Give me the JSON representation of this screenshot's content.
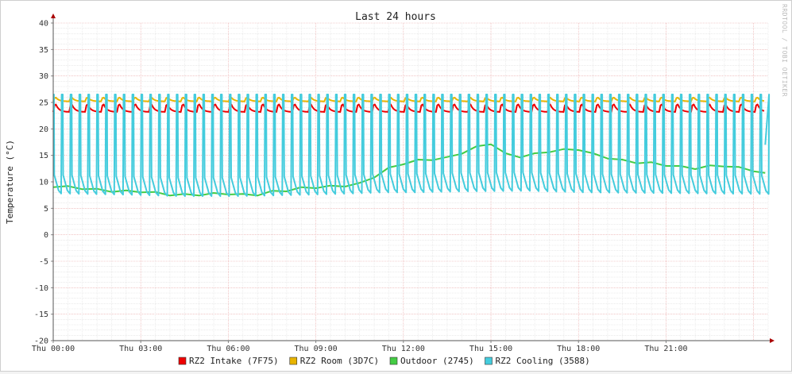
{
  "chart_data": {
    "type": "line",
    "title": "Last 24 hours",
    "ylabel": "Temperature (°C)",
    "watermark": "RRDTOOL / TOBI OETIKER",
    "ylim": [
      -20,
      40
    ],
    "yticks": [
      "40",
      "35",
      "30",
      "25",
      "20",
      "15",
      "10",
      "5",
      "0",
      "-5",
      "-10",
      "-15",
      "-20"
    ],
    "xlim_hours": [
      0,
      24.5
    ],
    "xticks": [
      {
        "label": "Thu 00:00",
        "hour": 0
      },
      {
        "label": "Thu 03:00",
        "hour": 3
      },
      {
        "label": "Thu 06:00",
        "hour": 6
      },
      {
        "label": "Thu 09:00",
        "hour": 9
      },
      {
        "label": "Thu 12:00",
        "hour": 12
      },
      {
        "label": "Thu 15:00",
        "hour": 15
      },
      {
        "label": "Thu 18:00",
        "hour": 18
      },
      {
        "label": "Thu 21:00",
        "hour": 21
      }
    ],
    "grid": true,
    "legend_position": "bottom",
    "series": [
      {
        "name": "RZ2 Intake (7F75)",
        "color": "#ee0000",
        "shape": "sawtooth",
        "cycles_per_hour": 1.83,
        "low": 23.2,
        "high": 25.0,
        "x": [
          0,
          24.4
        ],
        "y": [
          23.2,
          23.2
        ]
      },
      {
        "name": "RZ2 Room (3D7C)",
        "color": "#e8b400",
        "shape": "sawtooth",
        "cycles_per_hour": 1.83,
        "low": 25.2,
        "high": 26.1,
        "x": [
          0,
          24.4
        ],
        "y": [
          25.4,
          25.4
        ]
      },
      {
        "name": "Outdoor (2745)",
        "color": "#44cc44",
        "shape": "line",
        "x": [
          0,
          0.5,
          1,
          1.5,
          2,
          2.5,
          3,
          3.5,
          4,
          4.5,
          5,
          5.5,
          6,
          6.5,
          7,
          7.5,
          8,
          8.5,
          9,
          9.5,
          10,
          10.5,
          11,
          11.5,
          12,
          12.5,
          13,
          13.5,
          14,
          14.5,
          15,
          15.5,
          16,
          16.5,
          17,
          17.5,
          18,
          18.5,
          19,
          19.5,
          20,
          20.5,
          21,
          21.5,
          22,
          22.5,
          23,
          23.5,
          24,
          24.4
        ],
        "y": [
          9.2,
          9.0,
          8.8,
          8.5,
          8.3,
          8.2,
          8.2,
          7.9,
          7.6,
          7.5,
          7.6,
          7.7,
          7.8,
          7.5,
          7.6,
          8.1,
          8.4,
          8.8,
          9.0,
          9.1,
          9.3,
          9.6,
          11.0,
          12.5,
          13.5,
          14.0,
          14.3,
          14.5,
          15.5,
          16.5,
          17.3,
          15.2,
          14.8,
          15.2,
          15.8,
          16.0,
          16.2,
          15.2,
          14.6,
          14.0,
          13.7,
          13.5,
          13.2,
          12.8,
          12.6,
          12.9,
          13.1,
          12.6,
          12.2,
          11.5
        ]
      },
      {
        "name": "RZ2 Cooling (3588)",
        "color": "#44ccdd",
        "shape": "spikes",
        "spikes_per_hour": 3.3,
        "high": 26.5,
        "x": [
          0,
          2,
          4,
          6,
          8,
          10,
          11,
          12,
          14,
          16,
          18,
          20,
          22,
          24.4
        ],
        "y": [
          7.8,
          7.6,
          7.3,
          7.3,
          7.5,
          7.8,
          8.0,
          8.0,
          8.2,
          8.3,
          8.0,
          7.9,
          7.8,
          7.7
        ]
      }
    ]
  }
}
